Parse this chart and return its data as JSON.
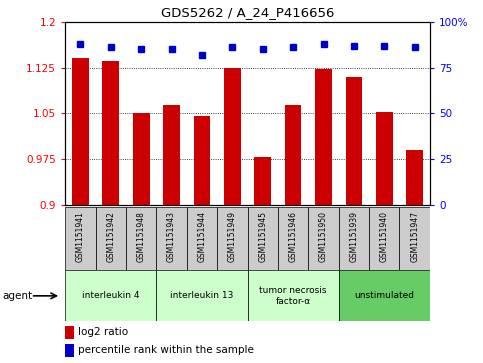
{
  "title": "GDS5262 / A_24_P416656",
  "samples": [
    "GSM1151941",
    "GSM1151942",
    "GSM1151948",
    "GSM1151943",
    "GSM1151944",
    "GSM1151949",
    "GSM1151945",
    "GSM1151946",
    "GSM1151950",
    "GSM1151939",
    "GSM1151940",
    "GSM1151947"
  ],
  "log2_ratio": [
    1.14,
    1.135,
    1.05,
    1.063,
    1.045,
    1.125,
    0.978,
    1.063,
    1.122,
    1.11,
    1.053,
    0.99
  ],
  "percentile": [
    88,
    86,
    85,
    85,
    82,
    86,
    85,
    86,
    88,
    87,
    87,
    86
  ],
  "groups": [
    {
      "label": "interleukin 4",
      "start": 0,
      "end": 3,
      "color": "#ccffcc"
    },
    {
      "label": "interleukin 13",
      "start": 3,
      "end": 6,
      "color": "#ccffcc"
    },
    {
      "label": "tumor necrosis\nfactor-α",
      "start": 6,
      "end": 9,
      "color": "#ccffcc"
    },
    {
      "label": "unstimulated",
      "start": 9,
      "end": 12,
      "color": "#66cc66"
    }
  ],
  "ylim_left": [
    0.9,
    1.2
  ],
  "ylim_right": [
    0,
    100
  ],
  "yticks_left": [
    0.9,
    0.975,
    1.05,
    1.125,
    1.2
  ],
  "ytick_labels_left": [
    "0.9",
    "0.975",
    "1.05",
    "1.125",
    "1.2"
  ],
  "yticks_right": [
    0,
    25,
    50,
    75,
    100
  ],
  "ytick_labels_right": [
    "0",
    "25",
    "50",
    "75",
    "100%"
  ],
  "bar_color": "#cc0000",
  "dot_color": "#0000cc",
  "background_color": "#ffffff",
  "plot_bg_color": "#ffffff",
  "sample_bg_color": "#cccccc",
  "agent_label": "agent",
  "legend_log2": "log2 ratio",
  "legend_pct": "percentile rank within the sample"
}
